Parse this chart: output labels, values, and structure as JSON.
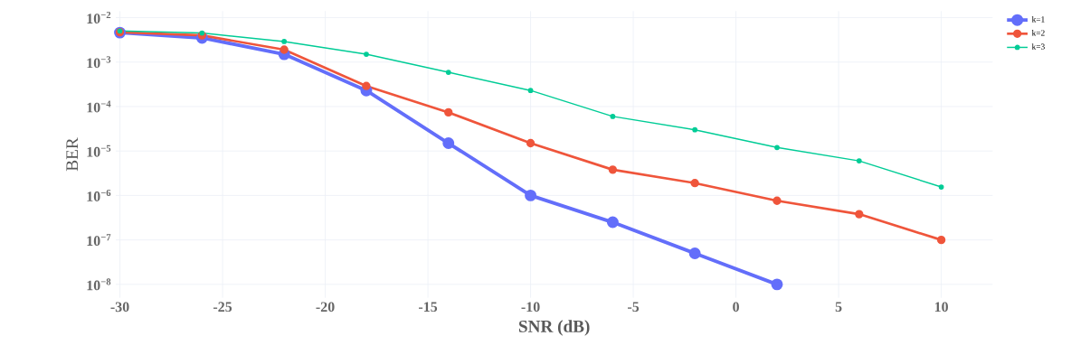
{
  "chart_data": {
    "type": "line",
    "xlabel": "SNR (dB)",
    "ylabel": "BER",
    "x": [
      -30,
      -26,
      -22,
      -18,
      -14,
      -10,
      -6,
      -2,
      2,
      6,
      10
    ],
    "series": [
      {
        "name": "k=1",
        "color": "#636efa",
        "values": [
          0.0046,
          0.0035,
          0.0015,
          0.00023,
          1.5e-05,
          1e-06,
          2.5e-07,
          5e-08,
          1e-08,
          null,
          null
        ]
      },
      {
        "name": "k=2",
        "color": "#ef553b",
        "values": [
          0.0047,
          0.004,
          0.0019,
          0.00029,
          7.4e-05,
          1.5e-05,
          3.8e-06,
          1.9e-06,
          7.6e-07,
          3.8e-07,
          1e-07
        ]
      },
      {
        "name": "k=3",
        "color": "#00cc96",
        "values": [
          0.005,
          0.0045,
          0.0029,
          0.0015,
          0.00059,
          0.00023,
          6e-05,
          3e-05,
          1.2e-05,
          6e-06,
          1.55e-06
        ]
      }
    ],
    "xlim": [
      -30.2,
      12.5
    ],
    "ylim": [
      5e-09,
      0.014
    ],
    "xticks": [
      -30,
      -25,
      -20,
      -15,
      -10,
      -5,
      0,
      5,
      10
    ],
    "yticks": [
      {
        "value": 1e-08,
        "label": "10$^{−8}$"
      },
      {
        "value": 1e-07,
        "label": "10$^{−7}$"
      },
      {
        "value": 1e-06,
        "label": "10$^{−6}$"
      },
      {
        "value": 1e-05,
        "label": "10$^{−5}$"
      },
      {
        "value": 0.0001,
        "label": "10$^{−4}$"
      },
      {
        "value": 0.001,
        "label": "10$^{−3}$"
      },
      {
        "value": 0.01,
        "label": "10$^{−2}$"
      }
    ],
    "log": "y",
    "grid": true,
    "legend": "top right",
    "marker": "circle"
  }
}
